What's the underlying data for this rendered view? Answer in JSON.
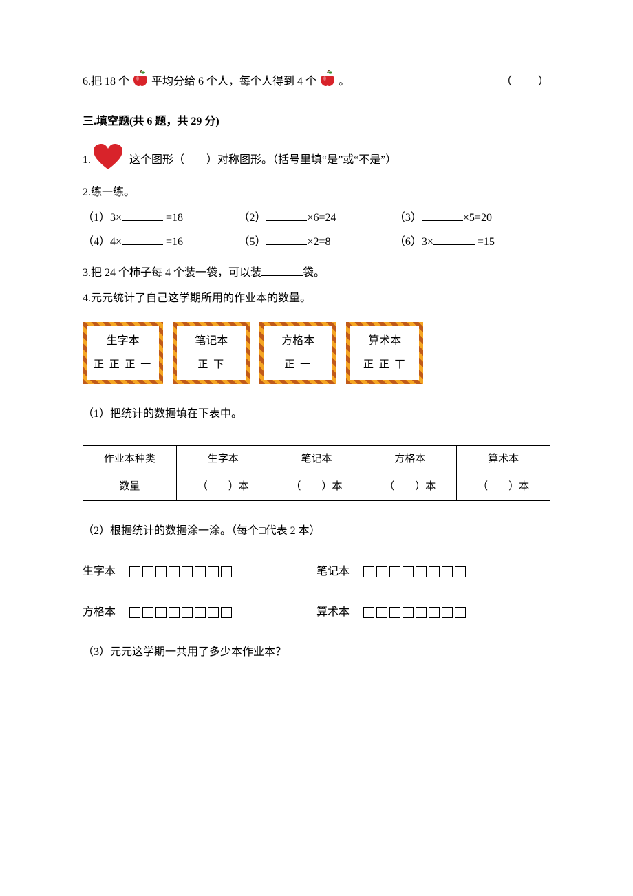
{
  "colors": {
    "text": "#000000",
    "background": "#ffffff",
    "apple_red": "#d8232a",
    "apple_leaf": "#3a8b2e",
    "heart_red": "#d8232a",
    "card_border_dark": "#c05a1a",
    "card_border_light": "#f5a623"
  },
  "q6": {
    "num": "6.",
    "t1": "把 18 个",
    "t2": "平均分给 6 个人，每个人得到 4 个",
    "t3": "。",
    "paren": "（　　）"
  },
  "section3": {
    "title": "三.填空题(共 6 题，共 29 分)"
  },
  "s3q1": {
    "num": "1.",
    "t1": "这个图形（　　）对称图形。（括号里填“是”或“不是”）"
  },
  "s3q2": {
    "num": "2.",
    "title": "练一练。",
    "r1c1": "（1）3×",
    "r1c1b": " =18",
    "r1c2": "（2）",
    "r1c2b": "×6=24",
    "r1c3": "（3）",
    "r1c3b": "×5=20",
    "r2c1": "（4）4×",
    "r2c1b": " =16",
    "r2c2": "（5）",
    "r2c2b": "×2=8",
    "r2c3": "（6）3×",
    "r2c3b": " =15"
  },
  "s3q3": {
    "text": "3.把 24 个柿子每 4 个装一袋，可以装",
    "tail": "袋。"
  },
  "s3q4": {
    "text": "4.元元统计了自己这学期所用的作业本的数量。",
    "cards": [
      {
        "name": "生字本",
        "marks": "正 正 正 一"
      },
      {
        "name": "笔记本",
        "marks": "正 下"
      },
      {
        "name": "方格本",
        "marks": "正 一"
      },
      {
        "name": "算术本",
        "marks": "正 正 丅"
      }
    ],
    "p1": "（1）把统计的数据填在下表中。",
    "table": {
      "headers": [
        "作业本种类",
        "生字本",
        "笔记本",
        "方格本",
        "算术本"
      ],
      "row_label": "数量",
      "cell": "（　　）本"
    },
    "p2": "（2）根据统计的数据涂一涂。（每个□代表 2 本）",
    "box_rows": [
      [
        {
          "label": "生字本",
          "count": 8
        },
        {
          "label": "笔记本",
          "count": 8
        }
      ],
      [
        {
          "label": "方格本",
          "count": 8
        },
        {
          "label": "算术本",
          "count": 8
        }
      ]
    ],
    "p3": "（3）元元这学期一共用了多少本作业本？"
  },
  "icons": {
    "apple": {
      "w": 28,
      "h": 28,
      "body": "#d8232a",
      "leaf": "#3a8b2e",
      "stem": "#6b3a1a"
    },
    "heart": {
      "w": 46,
      "h": 40,
      "fill": "#d8232a"
    }
  }
}
